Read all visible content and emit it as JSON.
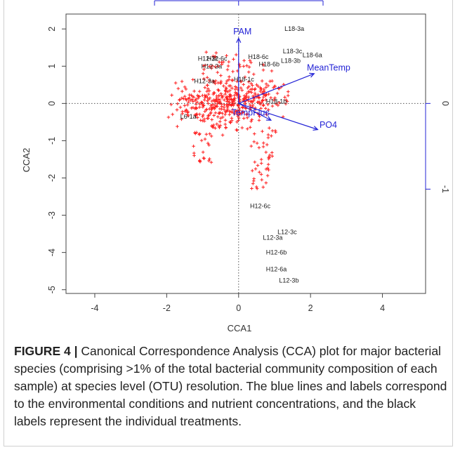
{
  "colors": {
    "treatment": "#1a1a1a",
    "env": "#2323d6",
    "otu": "#ff2020",
    "axis": "#444444"
  },
  "caption": {
    "label": "FIGURE 4 |",
    "text": "Canonical Correspondence Analysis (CCA) plot for major bacterial species (comprising >1% of the total bacterial community composition of each sample) at species level (OTU) resolution. The blue lines and labels correspond to the environmental conditions and nutrient concentrations, and the black labels represent the individual treatments."
  },
  "chart_data": {
    "type": "scatter",
    "xlabel": "CCA1",
    "ylabel": "CCA2",
    "xlim": [
      -4.8,
      5.2
    ],
    "ylim": [
      -5.1,
      2.4
    ],
    "x_ticks": [
      -4,
      -2,
      0,
      2,
      4
    ],
    "y_ticks": [
      2,
      1,
      0,
      -1,
      -2,
      -3,
      -4,
      -5
    ],
    "right_axis_ticks": [
      0,
      -1
    ],
    "reference_lines": {
      "x": 0,
      "y": 0,
      "style": "dotted"
    },
    "environmental_vectors": [
      {
        "label": "PAM",
        "x": 0.0,
        "y": 1.75,
        "label_x": -0.15,
        "label_y": 1.85
      },
      {
        "label": "MeanTemp",
        "x": 2.1,
        "y": 0.8,
        "label_x": 1.9,
        "label_y": 0.88
      },
      {
        "label": "PO4",
        "x": 2.2,
        "y": -0.7,
        "label_x": 2.25,
        "label_y": -0.65
      },
      {
        "label": "TempFluc",
        "x": 0.9,
        "y": -0.45,
        "label_x": -0.2,
        "label_y": -0.32
      }
    ],
    "treatment_labels": [
      {
        "label": "L18-3a",
        "x": 1.55,
        "y": 2.0
      },
      {
        "label": "L18-3c",
        "x": 1.5,
        "y": 1.4
      },
      {
        "label": "L18-6a",
        "x": 2.05,
        "y": 1.3
      },
      {
        "label": "L18-3b",
        "x": 1.45,
        "y": 1.15
      },
      {
        "label": "H18-6c",
        "x": 0.55,
        "y": 1.25
      },
      {
        "label": "H18-6b",
        "x": 0.85,
        "y": 1.05
      },
      {
        "label": "H12-3c",
        "x": -0.85,
        "y": 1.2
      },
      {
        "label": "H12-6c",
        "x": -0.6,
        "y": 1.2
      },
      {
        "label": "H12-3a",
        "x": -0.75,
        "y": 1.0
      },
      {
        "label": "H12-3a",
        "x": -0.95,
        "y": 0.6
      },
      {
        "label": "H18-1c",
        "x": 0.15,
        "y": 0.65
      },
      {
        "label": "H18-1b",
        "x": 1.05,
        "y": 0.05
      },
      {
        "label": "L6-1a",
        "x": -1.4,
        "y": -0.35
      },
      {
        "label": "H12-6c",
        "x": 0.6,
        "y": -2.75
      },
      {
        "label": "L12-3c",
        "x": 1.35,
        "y": -3.45
      },
      {
        "label": "L12-3a",
        "x": 0.95,
        "y": -3.6
      },
      {
        "label": "H12-6b",
        "x": 1.05,
        "y": -4.0
      },
      {
        "label": "H12-6a",
        "x": 1.05,
        "y": -4.45
      },
      {
        "label": "L12-3b",
        "x": 1.4,
        "y": -4.75
      }
    ]
  }
}
